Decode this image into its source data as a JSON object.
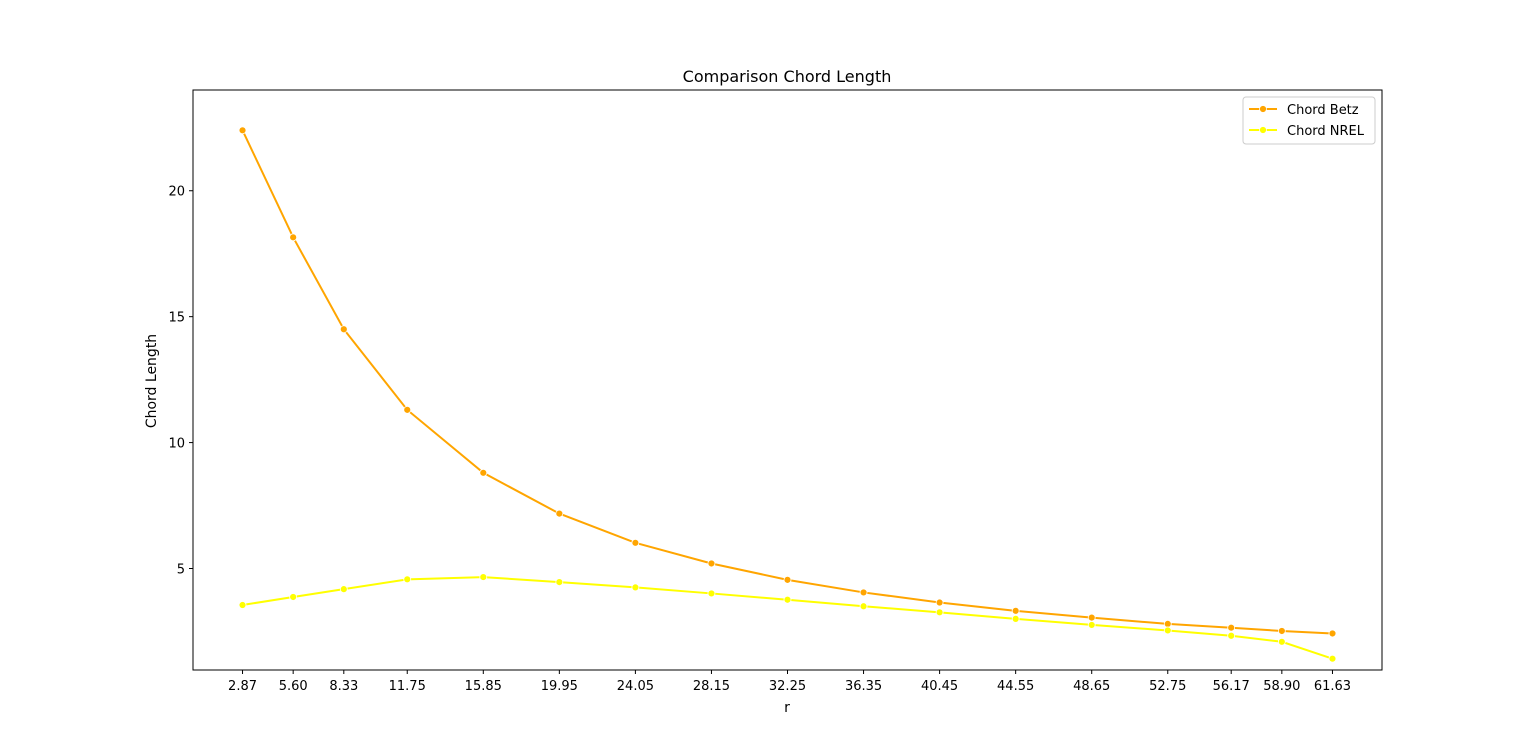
{
  "chart_data": {
    "type": "line",
    "title": "Comparison Chord Length",
    "xlabel": "r",
    "ylabel": "Chord Length",
    "x": [
      2.87,
      5.6,
      8.33,
      11.75,
      15.85,
      19.95,
      24.05,
      28.15,
      32.25,
      36.35,
      40.45,
      44.55,
      48.65,
      52.75,
      56.17,
      58.9,
      61.63
    ],
    "x_tick_labels": [
      "2.87",
      "5.60",
      "8.33",
      "11.75",
      "15.85",
      "19.95",
      "24.05",
      "28.15",
      "32.25",
      "36.35",
      "40.45",
      "44.55",
      "48.65",
      "52.75",
      "56.17",
      "58.90",
      "61.63"
    ],
    "y_ticks": [
      5,
      10,
      15,
      20
    ],
    "y_tick_labels": [
      "5",
      "10",
      "15",
      "20"
    ],
    "xlim": [
      0.2,
      64.3
    ],
    "ylim": [
      0.97,
      24.0
    ],
    "grid": false,
    "legend_position": "top-right",
    "series": [
      {
        "name": "Chord Betz",
        "color": "#ffa500",
        "marker": "circle",
        "values": [
          22.4,
          18.15,
          14.5,
          11.3,
          8.8,
          7.18,
          6.02,
          5.2,
          4.55,
          4.05,
          3.65,
          3.32,
          3.05,
          2.8,
          2.65,
          2.52,
          2.42
        ]
      },
      {
        "name": "Chord NREL",
        "color": "#ffff00",
        "marker": "circle",
        "values": [
          3.55,
          3.87,
          4.18,
          4.57,
          4.66,
          4.46,
          4.25,
          4.01,
          3.76,
          3.5,
          3.26,
          3.0,
          2.76,
          2.54,
          2.33,
          2.09,
          1.42
        ]
      }
    ]
  }
}
